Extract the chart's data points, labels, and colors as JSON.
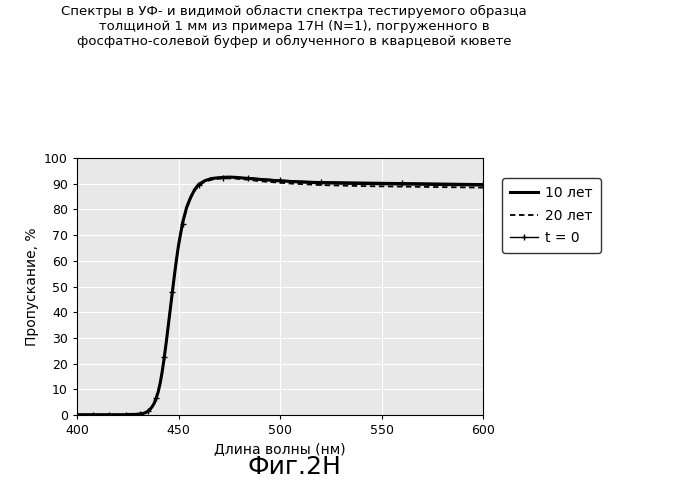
{
  "title": "Спектры в УФ- и видимой области спектра тестируемого образца\nтолщиной 1 мм из примера 17H (N=1), погруженного в\nфосфатно-солевой буфер и облученного в кварцевой кювете",
  "xlabel": "Длина волны (нм)",
  "ylabel": "Пропускание, %",
  "caption": "Фиг.2H",
  "xlim": [
    400,
    600
  ],
  "ylim": [
    0,
    100
  ],
  "xticks": [
    400,
    450,
    500,
    550,
    600
  ],
  "yticks": [
    0,
    10,
    20,
    30,
    40,
    50,
    60,
    70,
    80,
    90,
    100
  ],
  "legend": [
    "t = 0",
    "10 лет",
    "20 лет"
  ],
  "bg_color": "#e8e8e8",
  "grid_color": "#ffffff",
  "curve_x": [
    400,
    402,
    404,
    406,
    408,
    410,
    412,
    414,
    416,
    418,
    420,
    422,
    424,
    426,
    428,
    430,
    431,
    432,
    433,
    434,
    435,
    436,
    437,
    438,
    439,
    440,
    441,
    442,
    443,
    444,
    445,
    446,
    447,
    448,
    449,
    450,
    452,
    454,
    456,
    458,
    460,
    463,
    466,
    469,
    472,
    475,
    478,
    481,
    484,
    487,
    490,
    495,
    500,
    505,
    510,
    515,
    520,
    530,
    540,
    550,
    560,
    570,
    580,
    590,
    600
  ],
  "curve_t0": [
    0.1,
    0.1,
    0.1,
    0.1,
    0.1,
    0.1,
    0.1,
    0.1,
    0.1,
    0.1,
    0.1,
    0.1,
    0.1,
    0.2,
    0.2,
    0.3,
    0.4,
    0.5,
    0.7,
    1.0,
    1.5,
    2.2,
    3.2,
    4.5,
    6.5,
    9.0,
    12.5,
    17.0,
    22.5,
    28.5,
    35.0,
    41.5,
    48.0,
    54.5,
    60.5,
    66.0,
    74.5,
    80.5,
    84.5,
    87.5,
    89.5,
    91.0,
    91.8,
    92.2,
    92.4,
    92.5,
    92.5,
    92.4,
    92.3,
    92.2,
    92.0,
    91.7,
    91.4,
    91.2,
    91.0,
    90.9,
    90.8,
    90.7,
    90.6,
    90.5,
    90.4,
    90.3,
    90.2,
    90.1,
    90.0
  ],
  "curve_10y": [
    0.1,
    0.1,
    0.1,
    0.1,
    0.1,
    0.1,
    0.1,
    0.1,
    0.1,
    0.1,
    0.1,
    0.1,
    0.1,
    0.2,
    0.2,
    0.3,
    0.4,
    0.5,
    0.7,
    1.0,
    1.5,
    2.2,
    3.2,
    4.5,
    6.5,
    9.0,
    12.5,
    17.0,
    22.5,
    28.5,
    35.0,
    41.5,
    48.0,
    54.5,
    60.5,
    66.0,
    74.8,
    80.8,
    84.8,
    87.8,
    89.8,
    91.2,
    92.0,
    92.3,
    92.5,
    92.6,
    92.5,
    92.3,
    92.1,
    91.9,
    91.7,
    91.4,
    91.1,
    90.9,
    90.7,
    90.5,
    90.4,
    90.2,
    90.1,
    90.0,
    89.9,
    89.8,
    89.7,
    89.6,
    89.5
  ],
  "curve_20y": [
    0.1,
    0.1,
    0.1,
    0.1,
    0.1,
    0.1,
    0.1,
    0.1,
    0.1,
    0.1,
    0.1,
    0.1,
    0.1,
    0.2,
    0.2,
    0.3,
    0.4,
    0.5,
    0.7,
    1.0,
    1.5,
    2.2,
    3.2,
    4.5,
    6.5,
    9.0,
    12.5,
    17.0,
    22.5,
    28.5,
    35.0,
    41.5,
    48.0,
    54.5,
    60.5,
    66.0,
    74.3,
    80.3,
    84.3,
    87.3,
    89.3,
    90.8,
    91.5,
    91.9,
    92.1,
    92.1,
    92.0,
    91.8,
    91.6,
    91.3,
    91.0,
    90.7,
    90.4,
    90.1,
    89.9,
    89.7,
    89.5,
    89.3,
    89.1,
    89.0,
    88.9,
    88.8,
    88.7,
    88.6,
    88.5
  ]
}
